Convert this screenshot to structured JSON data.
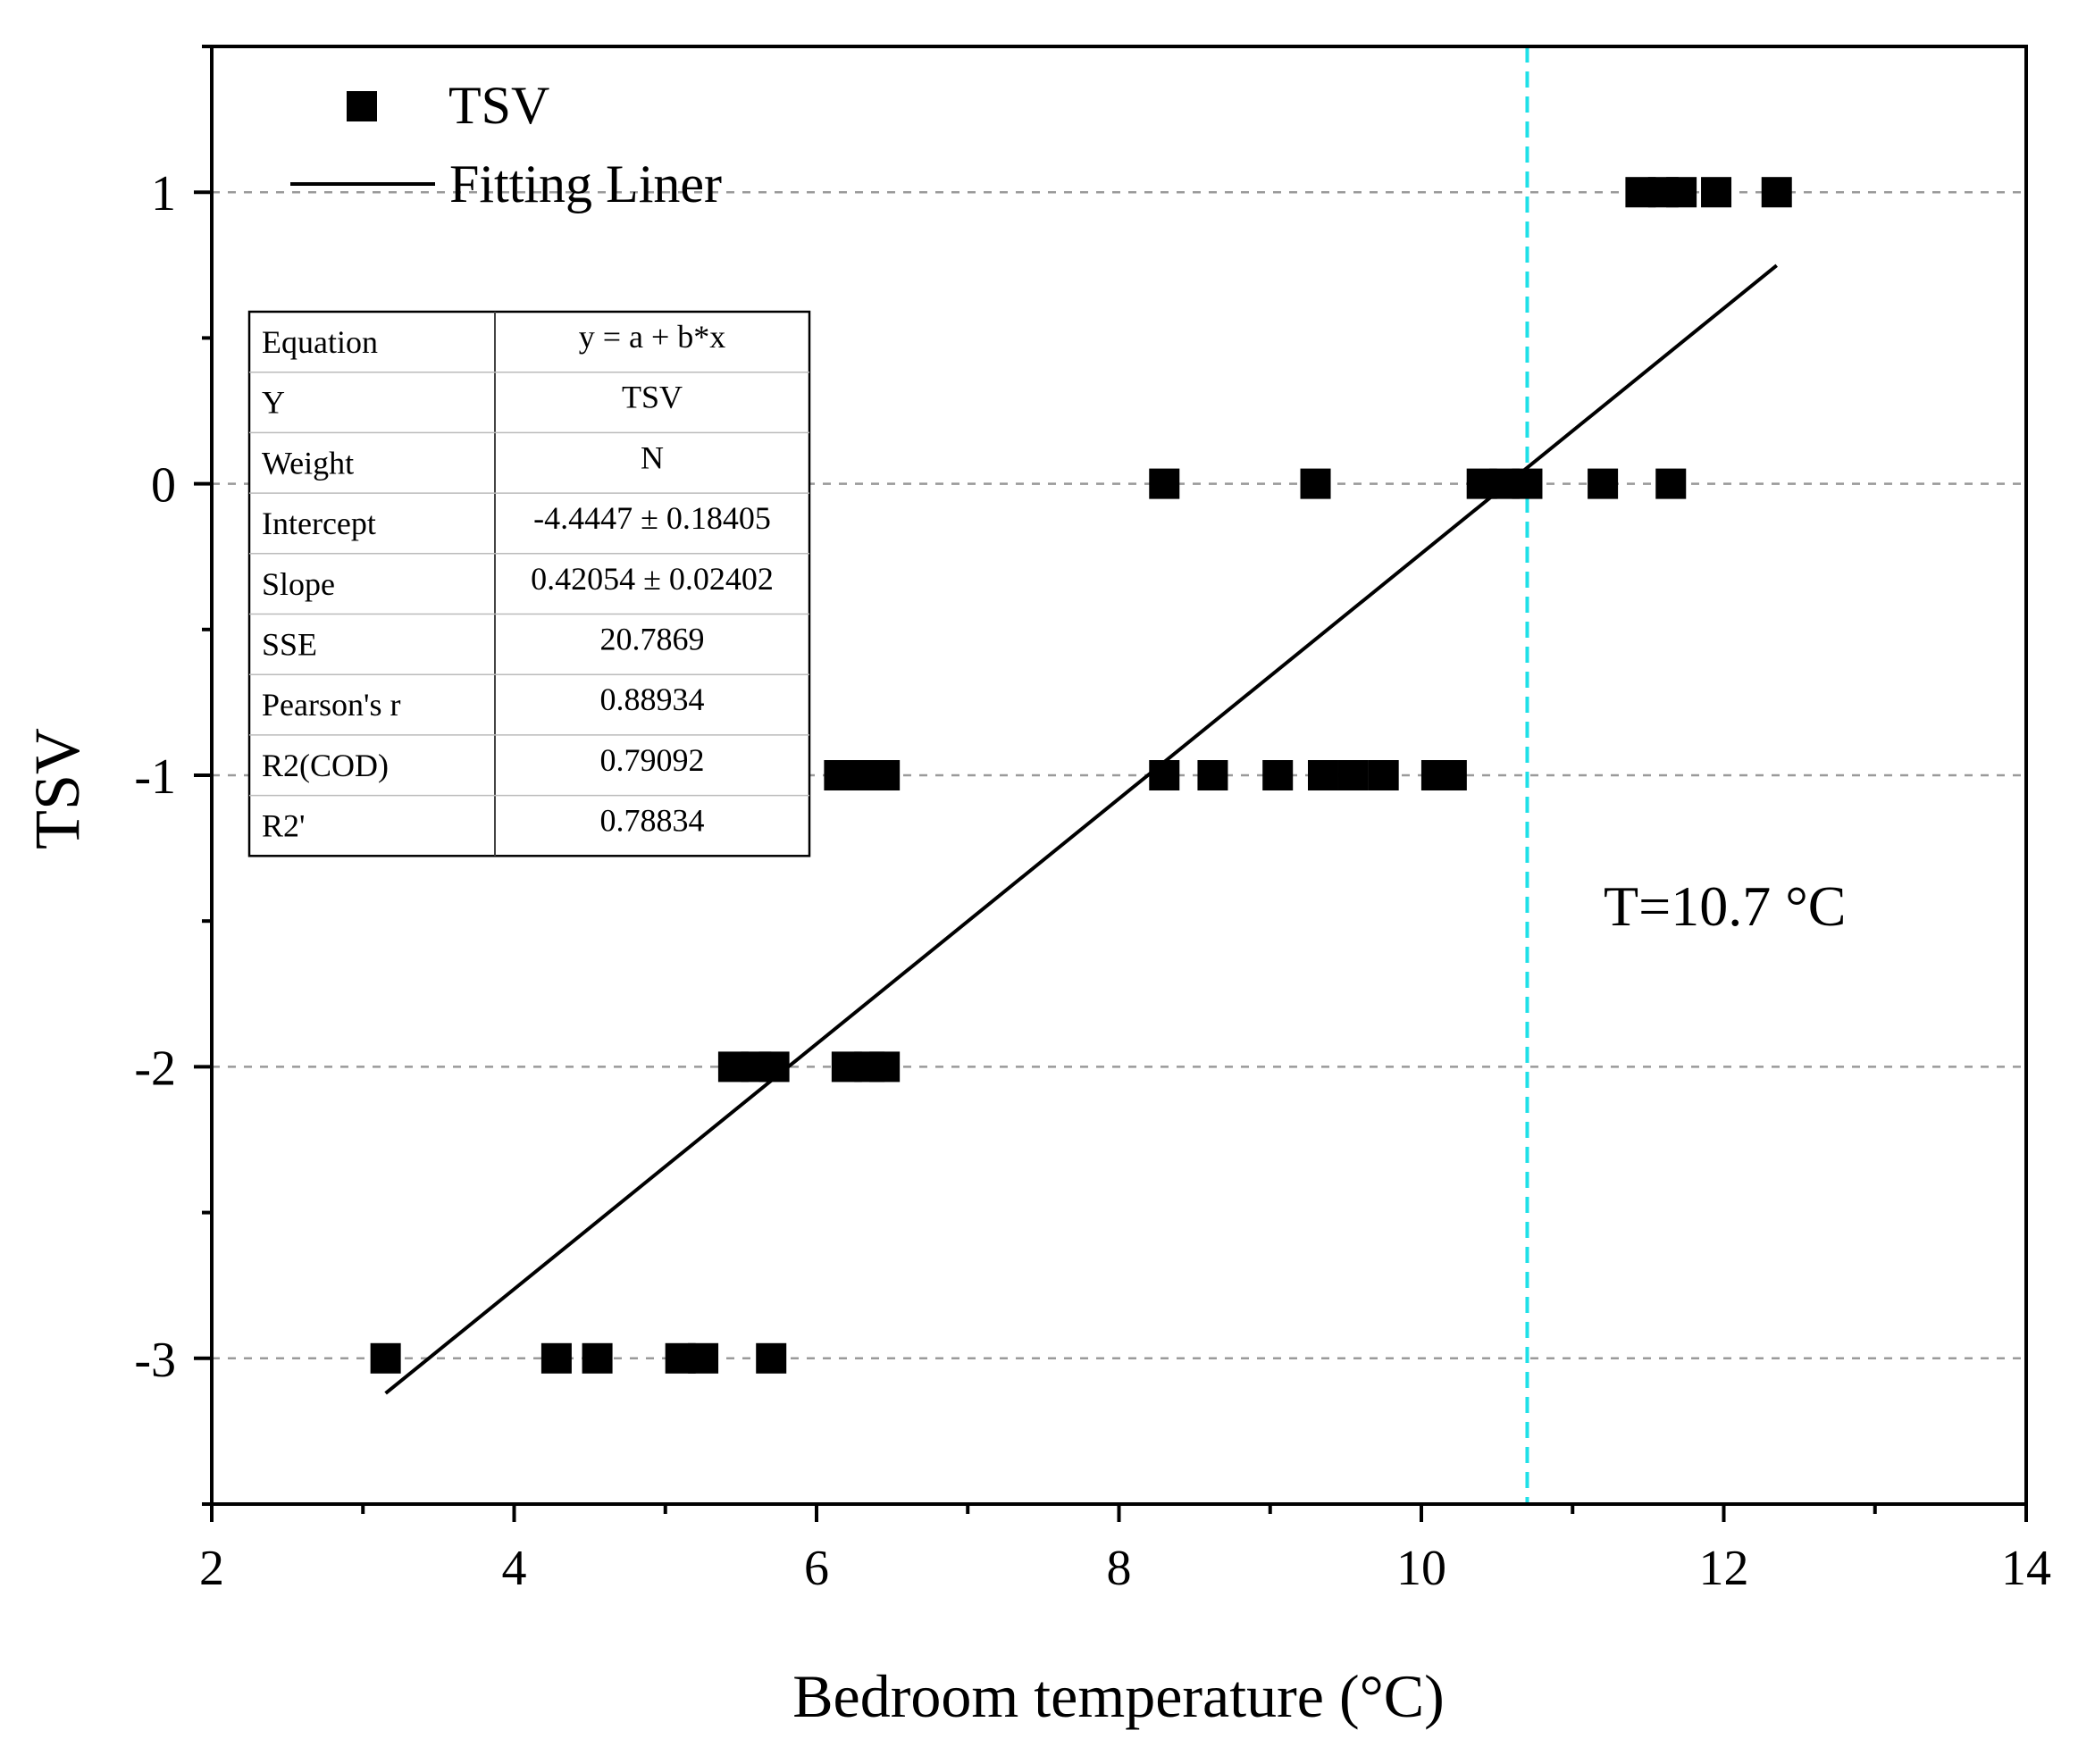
{
  "chart_data": {
    "type": "scatter",
    "xlabel": "Bedroom temperature (°C)",
    "ylabel": "TSV",
    "xlim": [
      2,
      14
    ],
    "ylim": [
      -3.5,
      1.5
    ],
    "x_ticks": [
      2,
      4,
      6,
      8,
      10,
      12,
      14
    ],
    "x_tick_labels": [
      "2",
      "4",
      "6",
      "8",
      "10",
      "12",
      "14"
    ],
    "y_ticks": [
      -3,
      -2,
      -1,
      0,
      1
    ],
    "y_tick_labels": [
      "-3",
      "-2",
      "-1",
      "0",
      "1"
    ],
    "grid": "horizontal dashed at y ticks",
    "legend": {
      "position": "top-left",
      "entries": [
        {
          "label": "TSV",
          "marker": "square"
        },
        {
          "label": "Fitting Liner",
          "marker": "line"
        }
      ]
    },
    "series": [
      {
        "name": "TSV",
        "points": [
          {
            "x": 3.15,
            "y": -3
          },
          {
            "x": 4.28,
            "y": -3
          },
          {
            "x": 4.55,
            "y": -3
          },
          {
            "x": 5.1,
            "y": -3
          },
          {
            "x": 5.25,
            "y": -3
          },
          {
            "x": 5.7,
            "y": -3
          },
          {
            "x": 5.45,
            "y": -2
          },
          {
            "x": 5.6,
            "y": -2
          },
          {
            "x": 5.72,
            "y": -2
          },
          {
            "x": 6.2,
            "y": -2
          },
          {
            "x": 6.35,
            "y": -2
          },
          {
            "x": 6.45,
            "y": -2
          },
          {
            "x": 6.15,
            "y": -1
          },
          {
            "x": 6.3,
            "y": -1
          },
          {
            "x": 6.45,
            "y": -1
          },
          {
            "x": 8.3,
            "y": -1
          },
          {
            "x": 8.62,
            "y": -1
          },
          {
            "x": 9.05,
            "y": -1
          },
          {
            "x": 9.35,
            "y": -1
          },
          {
            "x": 9.55,
            "y": -1
          },
          {
            "x": 9.75,
            "y": -1
          },
          {
            "x": 10.1,
            "y": -1
          },
          {
            "x": 10.2,
            "y": -1
          },
          {
            "x": 8.3,
            "y": 0
          },
          {
            "x": 9.3,
            "y": 0
          },
          {
            "x": 10.4,
            "y": 0
          },
          {
            "x": 10.55,
            "y": 0
          },
          {
            "x": 10.7,
            "y": 0
          },
          {
            "x": 11.2,
            "y": 0
          },
          {
            "x": 11.65,
            "y": 0
          },
          {
            "x": 11.45,
            "y": 1
          },
          {
            "x": 11.6,
            "y": 1
          },
          {
            "x": 11.72,
            "y": 1
          },
          {
            "x": 11.95,
            "y": 1
          },
          {
            "x": 12.35,
            "y": 1
          }
        ]
      }
    ],
    "fit_line": {
      "name": "Fitting Liner",
      "intercept": -4.4447,
      "slope": 0.42054,
      "x_range": [
        3.15,
        12.35
      ]
    },
    "reference_line": {
      "x": 10.7,
      "label": "T=10.7 °C",
      "color": "#1fe0e8"
    },
    "stats_table": [
      {
        "key": "Equation",
        "value": "y = a + b*x"
      },
      {
        "key": "Y",
        "value": "TSV"
      },
      {
        "key": "Weight",
        "value": "N"
      },
      {
        "key": "Intercept",
        "value": "-4.4447 ± 0.18405"
      },
      {
        "key": "Slope",
        "value": "0.42054 ± 0.02402"
      },
      {
        "key": "SSE",
        "value": "20.7869"
      },
      {
        "key": "Pearson's r",
        "value": "0.88934"
      },
      {
        "key": "R2(COD)",
        "value": "0.79092"
      },
      {
        "key": "R2'",
        "value": "0.78834"
      }
    ]
  }
}
